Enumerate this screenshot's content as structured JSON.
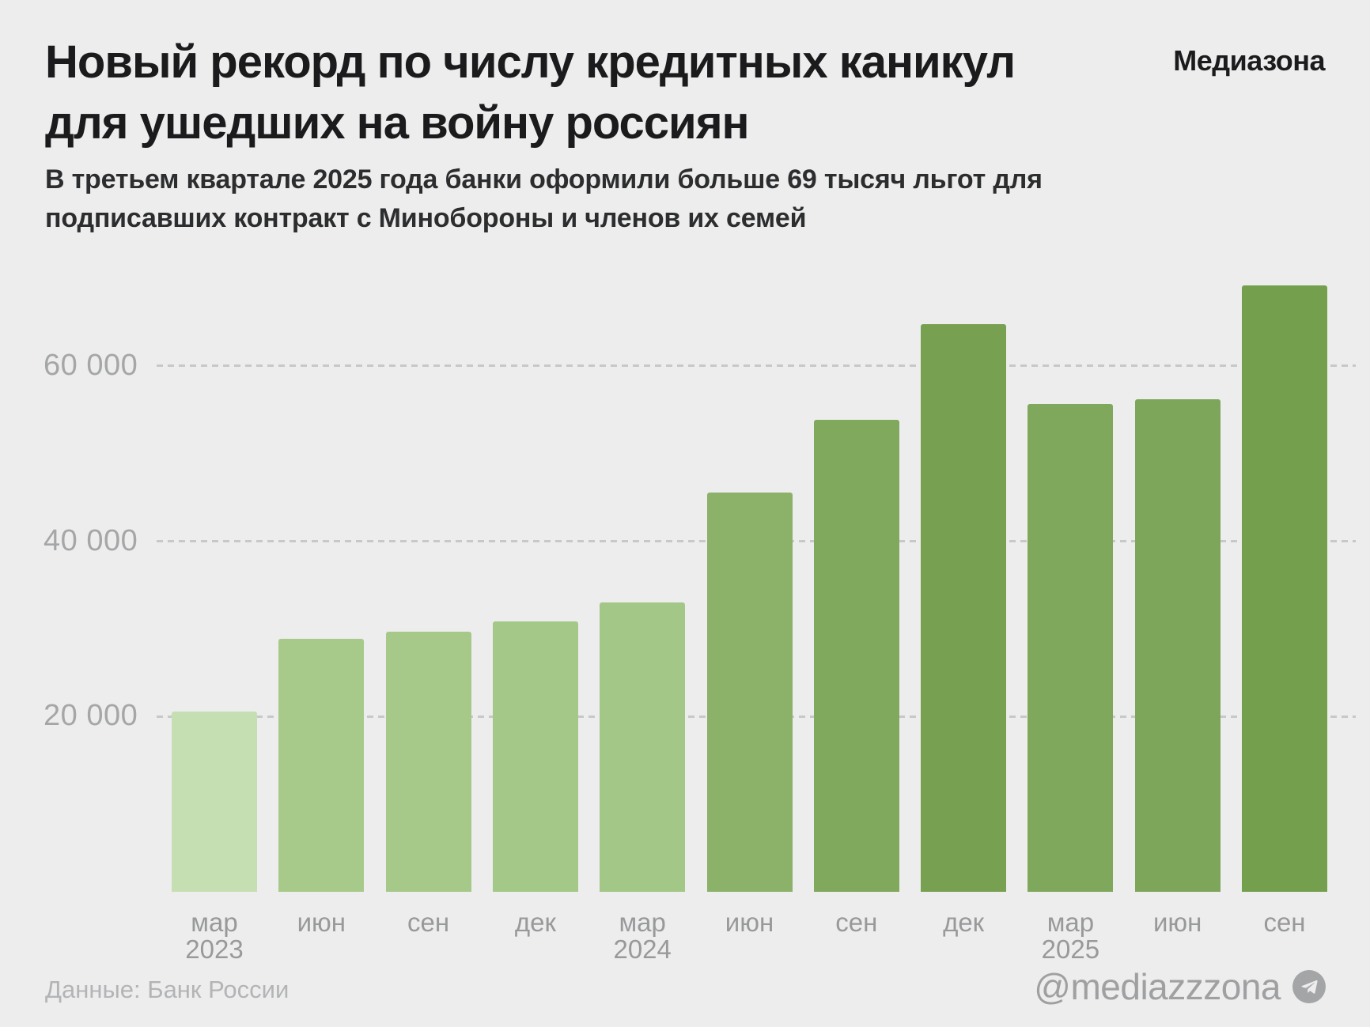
{
  "header": {
    "title_line1": "Новый рекорд по числу кредитных каникул",
    "title_line2": "для ушедших на войну россиян",
    "brand": "Медиазона",
    "subtitle_line1": "В третьем квартале 2025 года банки оформили больше 69 тысяч льгот для",
    "subtitle_line2": "подписавших контракт с Минобороны и членов их семей"
  },
  "footer": {
    "source": "Данные: Банк России",
    "handle": "@mediazzzona",
    "handle_icon": "telegram-icon"
  },
  "colors": {
    "background": "#ededed",
    "title": "#1b1b1d",
    "subtitle": "#2c2d2f",
    "gridline": "#c7c8c9",
    "y_tick_label": "#a5a6a8",
    "x_tick_label": "#98999b",
    "source_text": "#b3b4b6",
    "handle_text": "#9fa0a2",
    "lightest_bar": "#c6dfb2",
    "darkest_bar": "#74a04d"
  },
  "chart_data": {
    "type": "bar",
    "title": "Новый рекорд по числу кредитных каникул для ушедших на войну россиян",
    "subtitle": "В третьем квартале 2025 года банки оформили больше 69 тысяч льгот для подписавших контракт с Минобороны и членов их семей",
    "source": "Данные: Банк России",
    "xlabel": "",
    "ylabel": "",
    "ylim": [
      0,
      72500
    ],
    "grid": "horizontal-dashed",
    "legend": "none",
    "yticks": [
      {
        "value": 20000,
        "label": "20 000"
      },
      {
        "value": 40000,
        "label": "40 000"
      },
      {
        "value": 60000,
        "label": "60 000"
      }
    ],
    "categories": [
      "мар 2023",
      "июн",
      "сен",
      "дек",
      "мар 2024",
      "июн",
      "сен",
      "дек",
      "мар 2025",
      "июн",
      "сен"
    ],
    "values": [
      20600,
      28900,
      29700,
      30900,
      33000,
      45600,
      53900,
      64800,
      55700,
      56200,
      69200
    ],
    "bars": [
      {
        "month": "мар",
        "year": "2023",
        "value": 20600,
        "color": "#c6dfb2"
      },
      {
        "month": "июн",
        "year": "",
        "value": 28900,
        "color": "#a7ca8b"
      },
      {
        "month": "сен",
        "year": "",
        "value": 29700,
        "color": "#a6c98a"
      },
      {
        "month": "дек",
        "year": "",
        "value": 30900,
        "color": "#a4c888"
      },
      {
        "month": "мар",
        "year": "2024",
        "value": 33000,
        "color": "#a3c786"
      },
      {
        "month": "июн",
        "year": "",
        "value": 45600,
        "color": "#8cb26a"
      },
      {
        "month": "сен",
        "year": "",
        "value": 53900,
        "color": "#81a95d"
      },
      {
        "month": "дек",
        "year": "",
        "value": 64800,
        "color": "#77a151"
      },
      {
        "month": "мар",
        "year": "2025",
        "value": 55700,
        "color": "#80a85c"
      },
      {
        "month": "июн",
        "year": "",
        "value": 56200,
        "color": "#7ea65a"
      },
      {
        "month": "сен",
        "year": "",
        "value": 69200,
        "color": "#74a04d"
      }
    ]
  }
}
